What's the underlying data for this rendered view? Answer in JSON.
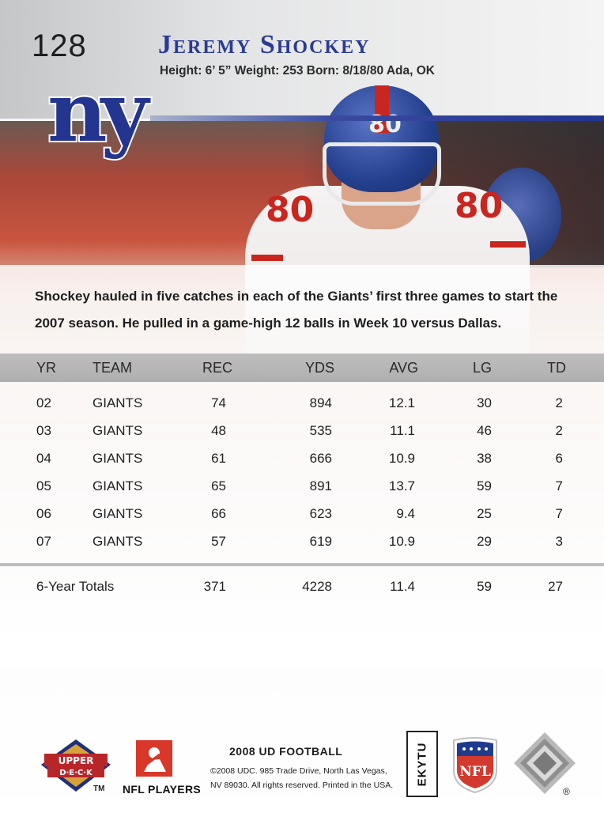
{
  "card": {
    "number": "128",
    "player_name": "Jeremy Shockey",
    "bio": "Height: 6’ 5” Weight: 253  Born: 8/18/80 Ada, OK",
    "team_logo_text": "ny",
    "blurb": "Shockey hauled in five catches in each of the Giants’ first three games to start the 2007 season. He pulled in a game-high 12 balls in Week 10 versus Dallas.",
    "helmet_number": "80",
    "jersey_number": "80"
  },
  "stats": {
    "headers": {
      "yr": "YR",
      "team": "TEAM",
      "rec": "REC",
      "yds": "YDS",
      "avg": "AVG",
      "lg": "LG",
      "td": "TD"
    },
    "rows": [
      {
        "yr": "02",
        "team": "GIANTS",
        "rec": "74",
        "yds": "894",
        "avg": "12.1",
        "lg": "30",
        "td": "2"
      },
      {
        "yr": "03",
        "team": "GIANTS",
        "rec": "48",
        "yds": "535",
        "avg": "11.1",
        "lg": "46",
        "td": "2"
      },
      {
        "yr": "04",
        "team": "GIANTS",
        "rec": "61",
        "yds": "666",
        "avg": "10.9",
        "lg": "38",
        "td": "6"
      },
      {
        "yr": "05",
        "team": "GIANTS",
        "rec": "65",
        "yds": "891",
        "avg": "13.7",
        "lg": "59",
        "td": "7"
      },
      {
        "yr": "06",
        "team": "GIANTS",
        "rec": "66",
        "yds": "623",
        "avg": "9.4",
        "lg": "25",
        "td": "7"
      },
      {
        "yr": "07",
        "team": "GIANTS",
        "rec": "57",
        "yds": "619",
        "avg": "10.9",
        "lg": "29",
        "td": "3"
      }
    ],
    "totals": {
      "label": "6-Year Totals",
      "rec": "371",
      "yds": "4228",
      "avg": "11.4",
      "lg": "59",
      "td": "27"
    }
  },
  "footer": {
    "upper_deck_top": "UPPER",
    "upper_deck_bottom": "D·E·C·K",
    "tm": "TM",
    "nfl_players": "NFL PLAYERS",
    "product": "2008 UD FOOTBALL",
    "legal_1": "©2008 UDC. 985 Trade Drive, North Las Vegas,",
    "legal_2": "NV 89030. All rights reserved. Printed in the USA.",
    "code": "EKYTU",
    "nfl": "NFL",
    "registered": "®"
  },
  "colors": {
    "giants_blue": "#24358f",
    "giants_red": "#c8261e",
    "ud_gold": "#d8a23a",
    "ud_red": "#b8262a"
  },
  "icons": [
    "giants-ny-logo",
    "upper-deck-logo",
    "nfl-players-logo",
    "nfl-shield-logo",
    "hologram-icon"
  ]
}
